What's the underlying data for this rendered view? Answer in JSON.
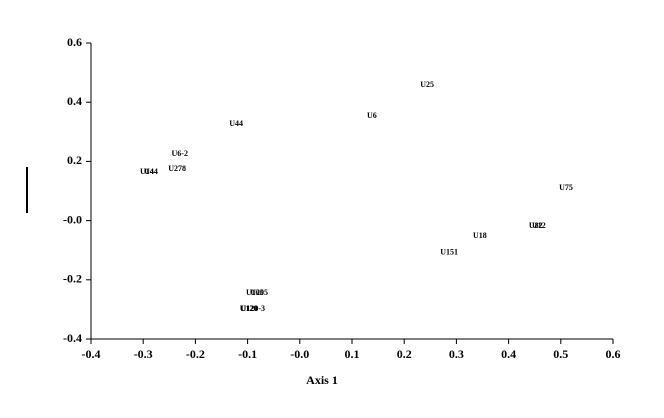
{
  "chart_data": {
    "type": "scatter",
    "x_label": "Axis 1",
    "series": [
      {
        "name": null,
        "color": "#000000",
        "labels": [
          "U25",
          "U6",
          "U44",
          "U6-2",
          "U278",
          "U14",
          "U44",
          "U75",
          "U82",
          "U12",
          "U18",
          "U151",
          "U105",
          "U205",
          "U120",
          "U120-3"
        ],
        "x": [
          0.244,
          0.138,
          -0.122,
          -0.23,
          -0.235,
          -0.293,
          -0.285,
          0.51,
          0.452,
          0.458,
          0.345,
          0.286,
          -0.086,
          -0.078,
          -0.098,
          -0.09
        ],
        "values": [
          0.458,
          0.353,
          0.326,
          0.225,
          0.174,
          0.164,
          0.164,
          0.11,
          -0.018,
          -0.018,
          -0.052,
          -0.109,
          -0.245,
          -0.245,
          -0.299,
          -0.299
        ]
      }
    ],
    "xlim": [
      -0.4,
      0.6
    ],
    "xticks": [
      -0.4,
      -0.3,
      -0.2,
      -0.1,
      {
        "value": 0,
        "label": "-0.0"
      },
      0.1,
      0.2,
      0.3,
      0.4,
      0.5,
      0.6
    ],
    "ylim": [
      -0.4,
      0.6
    ],
    "yticks": [
      0.6,
      0.4,
      0.2,
      {
        "value": 0,
        "label": "-0.0"
      },
      -0.2,
      -0.4
    ]
  }
}
